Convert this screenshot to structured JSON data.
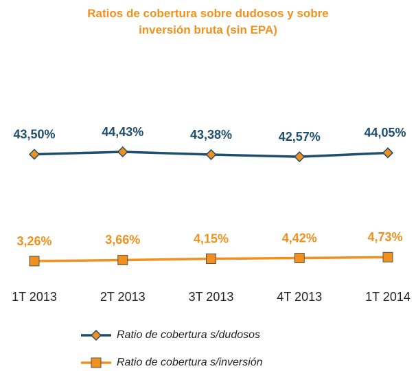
{
  "chart_data": {
    "type": "line",
    "title": "Ratios de cobertura sobre dudosos y sobre inversión bruta (sin EPA)",
    "categories": [
      "1T 2013",
      "2T 2013",
      "3T 2013",
      "4T 2013",
      "1T 2014"
    ],
    "series": [
      {
        "name": "Ratio de cobertura  s/dudosos",
        "color": "#1f4e6e",
        "marker": "diamond",
        "values": [
          43.5,
          44.43,
          43.38,
          42.57,
          44.05
        ],
        "value_labels": [
          "43,50%",
          "44,43%",
          "43,38%",
          "42,57%",
          "44,05%"
        ]
      },
      {
        "name": "Ratio de cobertura  s/inversión",
        "color": "#f0901e",
        "marker": "square",
        "values": [
          3.26,
          3.66,
          4.15,
          4.42,
          4.73
        ],
        "value_labels": [
          "3,26%",
          "3,66%",
          "4,15%",
          "4,42%",
          "4,73%"
        ]
      }
    ],
    "title_color": "#f0901e"
  }
}
